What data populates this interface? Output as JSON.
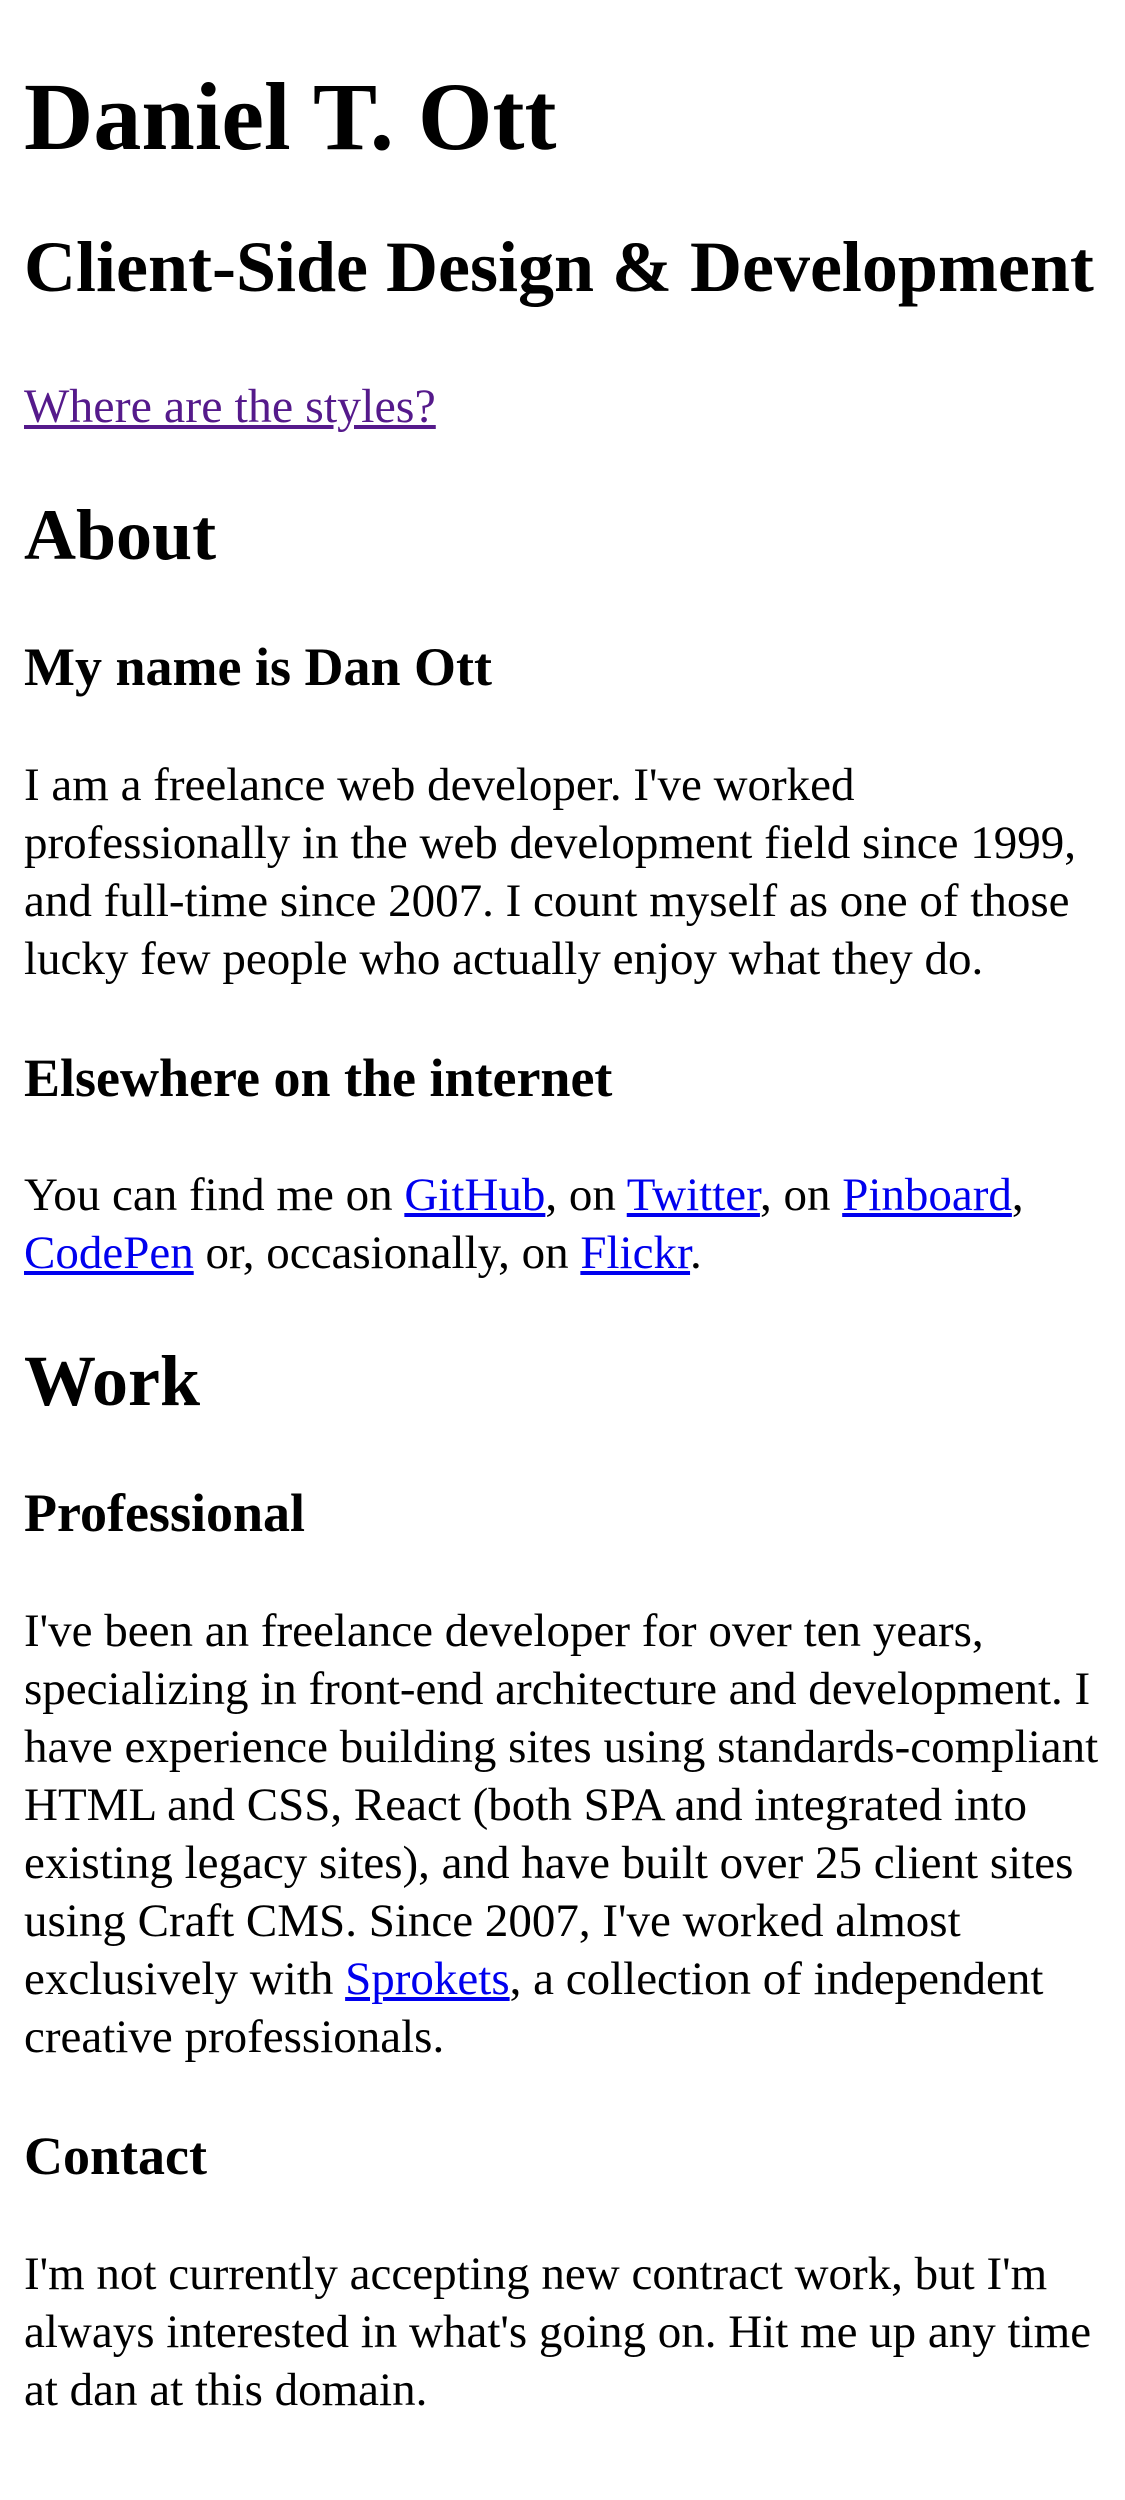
{
  "header": {
    "title": "Daniel T. Ott",
    "subtitle": "Client-Side Design & Development",
    "styles_link": "Where are the styles?"
  },
  "about": {
    "heading": "About",
    "name_heading": "My name is Dan Ott",
    "intro": "I am a freelance web developer. I've worked professionally in the web development field since 1999, and full-time since 2007. I count myself as one of those lucky few people who actually enjoy what they do.",
    "elsewhere_heading": "Elsewhere on the internet",
    "elsewhere": {
      "prefix": "You can find me on ",
      "github": "GitHub",
      "sep1": ", on ",
      "twitter": "Twitter",
      "sep2": ", on ",
      "pinboard": "Pinboard",
      "sep3": ", ",
      "codepen": "CodePen",
      "sep4": " or, occasionally, on ",
      "flickr": "Flickr",
      "suffix": "."
    }
  },
  "work": {
    "heading": "Work",
    "professional_heading": "Professional",
    "professional": {
      "text_before": "I've been an freelance developer for over ten years, specializing in front-end architecture and development. I have experience building sites using standards-compliant HTML and CSS, React (both SPA and integrated into existing legacy sites), and have built over 25 client sites using Craft CMS. Since 2007, I've worked almost exclusively with ",
      "sprokets": "Sprokets",
      "text_after": ", a collection of independent creative professionals."
    },
    "contact_heading": "Contact",
    "contact": "I'm not currently accepting new contract work, but I'm always interested in what's going on. Hit me up any time at dan at this domain."
  },
  "colors": {
    "visited_link": "#551a8b",
    "link": "#0000ee",
    "text": "#000000",
    "background": "#ffffff"
  }
}
